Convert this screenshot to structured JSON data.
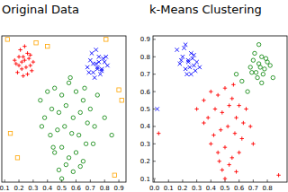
{
  "chart_data": [
    {
      "type": "scatter",
      "title": "Original Data",
      "xlim": [
        0.08,
        0.95
      ],
      "ylim": [
        0.08,
        0.92
      ],
      "xticks": [
        0.1,
        0.2,
        0.3,
        0.4,
        0.5,
        0.6,
        0.7,
        0.8,
        0.9
      ],
      "tick_labels": "x",
      "series": [
        {
          "color": "#ff0000",
          "marker": "plus",
          "x": [
            0.18,
            0.2,
            0.22,
            0.24,
            0.26,
            0.28,
            0.3,
            0.19,
            0.21,
            0.23,
            0.25,
            0.27,
            0.29,
            0.17,
            0.22,
            0.26,
            0.24,
            0.2,
            0.28,
            0.23
          ],
          "values": [
            0.76,
            0.8,
            0.73,
            0.78,
            0.82,
            0.75,
            0.77,
            0.71,
            0.84,
            0.69,
            0.74,
            0.79,
            0.72,
            0.78,
            0.77,
            0.7,
            0.86,
            0.75,
            0.81,
            0.8
          ]
        },
        {
          "color": "#0000ff",
          "marker": "x",
          "x": [
            0.68,
            0.7,
            0.72,
            0.74,
            0.76,
            0.78,
            0.8,
            0.82,
            0.71,
            0.73,
            0.75,
            0.77,
            0.79,
            0.69,
            0.74,
            0.76,
            0.72,
            0.78,
            0.75,
            0.81
          ],
          "values": [
            0.74,
            0.78,
            0.71,
            0.76,
            0.8,
            0.73,
            0.77,
            0.75,
            0.82,
            0.68,
            0.74,
            0.7,
            0.79,
            0.71,
            0.84,
            0.77,
            0.76,
            0.72,
            0.73,
            0.8
          ]
        },
        {
          "color": "#008000",
          "marker": "circle",
          "x": [
            0.35,
            0.4,
            0.45,
            0.5,
            0.55,
            0.6,
            0.65,
            0.7,
            0.75,
            0.8,
            0.38,
            0.43,
            0.48,
            0.53,
            0.58,
            0.63,
            0.68,
            0.73,
            0.42,
            0.47,
            0.52,
            0.57,
            0.62,
            0.67,
            0.72,
            0.45,
            0.5,
            0.55,
            0.6,
            0.65,
            0.48,
            0.53,
            0.58,
            0.63,
            0.5,
            0.56,
            0.44,
            0.66,
            0.85,
            0.36
          ],
          "values": [
            0.55,
            0.6,
            0.62,
            0.58,
            0.65,
            0.6,
            0.55,
            0.5,
            0.58,
            0.45,
            0.45,
            0.5,
            0.48,
            0.52,
            0.45,
            0.48,
            0.42,
            0.4,
            0.35,
            0.38,
            0.4,
            0.36,
            0.35,
            0.3,
            0.3,
            0.25,
            0.28,
            0.22,
            0.25,
            0.2,
            0.15,
            0.18,
            0.14,
            0.17,
            0.1,
            0.68,
            0.28,
            0.62,
            0.35,
            0.4
          ]
        },
        {
          "color": "#ffa500",
          "marker": "square",
          "x": [
            0.12,
            0.32,
            0.4,
            0.81,
            0.9,
            0.92,
            0.14,
            0.19,
            0.87
          ],
          "values": [
            0.9,
            0.88,
            0.86,
            0.9,
            0.61,
            0.55,
            0.36,
            0.22,
            0.12
          ]
        }
      ]
    },
    {
      "type": "scatter",
      "title": "k-Means Clustering",
      "xlim": [
        -0.01,
        0.94
      ],
      "ylim": [
        0.08,
        0.92
      ],
      "xticks": [
        {
          "value": 0,
          "label": "0.0"
        },
        0.1,
        0.2,
        0.3,
        0.4,
        0.5,
        0.6,
        0.7,
        0.8
      ],
      "yticks": [
        0.1,
        0.2,
        0.3,
        0.4,
        0.5,
        0.6,
        0.7,
        0.8,
        0.9
      ],
      "series": [
        {
          "color": "#0000ff",
          "marker": "x",
          "x": [
            0.18,
            0.2,
            0.22,
            0.24,
            0.26,
            0.28,
            0.3,
            0.32,
            0.21,
            0.23,
            0.25,
            0.27,
            0.29,
            0.19,
            0.24,
            0.26,
            0.22,
            0.28,
            0.16,
            0.02
          ],
          "values": [
            0.76,
            0.8,
            0.73,
            0.78,
            0.82,
            0.75,
            0.77,
            0.74,
            0.85,
            0.7,
            0.74,
            0.79,
            0.72,
            0.78,
            0.77,
            0.7,
            0.87,
            0.81,
            0.84,
            0.5
          ]
        },
        {
          "color": "#008000",
          "marker": "circle",
          "x": [
            0.68,
            0.7,
            0.72,
            0.74,
            0.76,
            0.78,
            0.8,
            0.82,
            0.71,
            0.73,
            0.75,
            0.77,
            0.79,
            0.69,
            0.74,
            0.76,
            0.62,
            0.66,
            0.58,
            0.84
          ],
          "values": [
            0.74,
            0.78,
            0.71,
            0.76,
            0.8,
            0.73,
            0.77,
            0.75,
            0.82,
            0.68,
            0.74,
            0.7,
            0.79,
            0.71,
            0.87,
            0.65,
            0.66,
            0.6,
            0.7,
            0.68
          ]
        },
        {
          "color": "#ff0000",
          "marker": "plus",
          "x": [
            0.35,
            0.4,
            0.45,
            0.5,
            0.55,
            0.6,
            0.65,
            0.38,
            0.43,
            0.48,
            0.53,
            0.58,
            0.63,
            0.68,
            0.42,
            0.47,
            0.52,
            0.57,
            0.62,
            0.45,
            0.5,
            0.55,
            0.6,
            0.48,
            0.53,
            0.58,
            0.5,
            0.4,
            0.35,
            0.3,
            0.7,
            0.56,
            0.46,
            0.03,
            0.88
          ],
          "values": [
            0.55,
            0.6,
            0.58,
            0.62,
            0.56,
            0.52,
            0.5,
            0.45,
            0.5,
            0.48,
            0.52,
            0.45,
            0.42,
            0.4,
            0.35,
            0.38,
            0.4,
            0.36,
            0.33,
            0.25,
            0.28,
            0.22,
            0.25,
            0.15,
            0.18,
            0.14,
            0.1,
            0.3,
            0.42,
            0.5,
            0.3,
            0.64,
            0.2,
            0.36,
            0.12
          ]
        }
      ]
    }
  ]
}
